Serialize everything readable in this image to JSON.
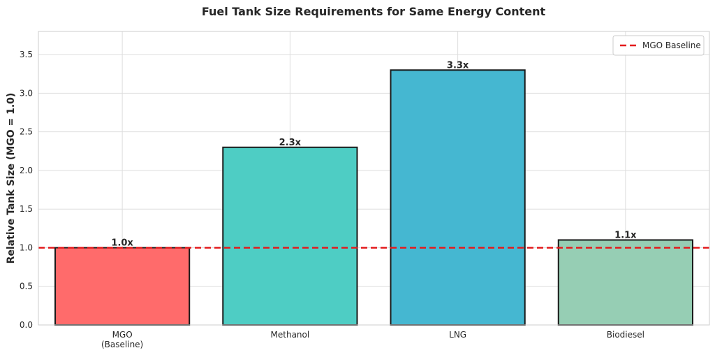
{
  "chart_data": {
    "type": "bar",
    "title": "Fuel Tank Size Requirements for Same Energy Content",
    "xlabel": "",
    "ylabel": "Relative Tank Size (MGO = 1.0)",
    "categories": [
      "MGO\n(Baseline)",
      "Methanol",
      "LNG",
      "Biodiesel"
    ],
    "values": [
      1.0,
      2.3,
      3.3,
      1.1
    ],
    "data_labels": [
      "1.0x",
      "2.3x",
      "3.3x",
      "1.1x"
    ],
    "colors": [
      "#FF6B6B",
      "#4ECDC4",
      "#45B7D1",
      "#96CEB4"
    ],
    "ylim": [
      0,
      3.8
    ],
    "yticks": [
      0.0,
      0.5,
      1.0,
      1.5,
      2.0,
      2.5,
      3.0,
      3.5
    ],
    "ytick_labels": [
      "0.0",
      "0.5",
      "1.0",
      "1.5",
      "2.0",
      "2.5",
      "3.0",
      "3.5"
    ],
    "grid": true,
    "baseline": {
      "value": 1.0,
      "label": "MGO Baseline",
      "color": "#E31A1C",
      "style": "dashed"
    },
    "legend": {
      "position": "top-right",
      "entries": [
        "MGO Baseline"
      ]
    }
  }
}
